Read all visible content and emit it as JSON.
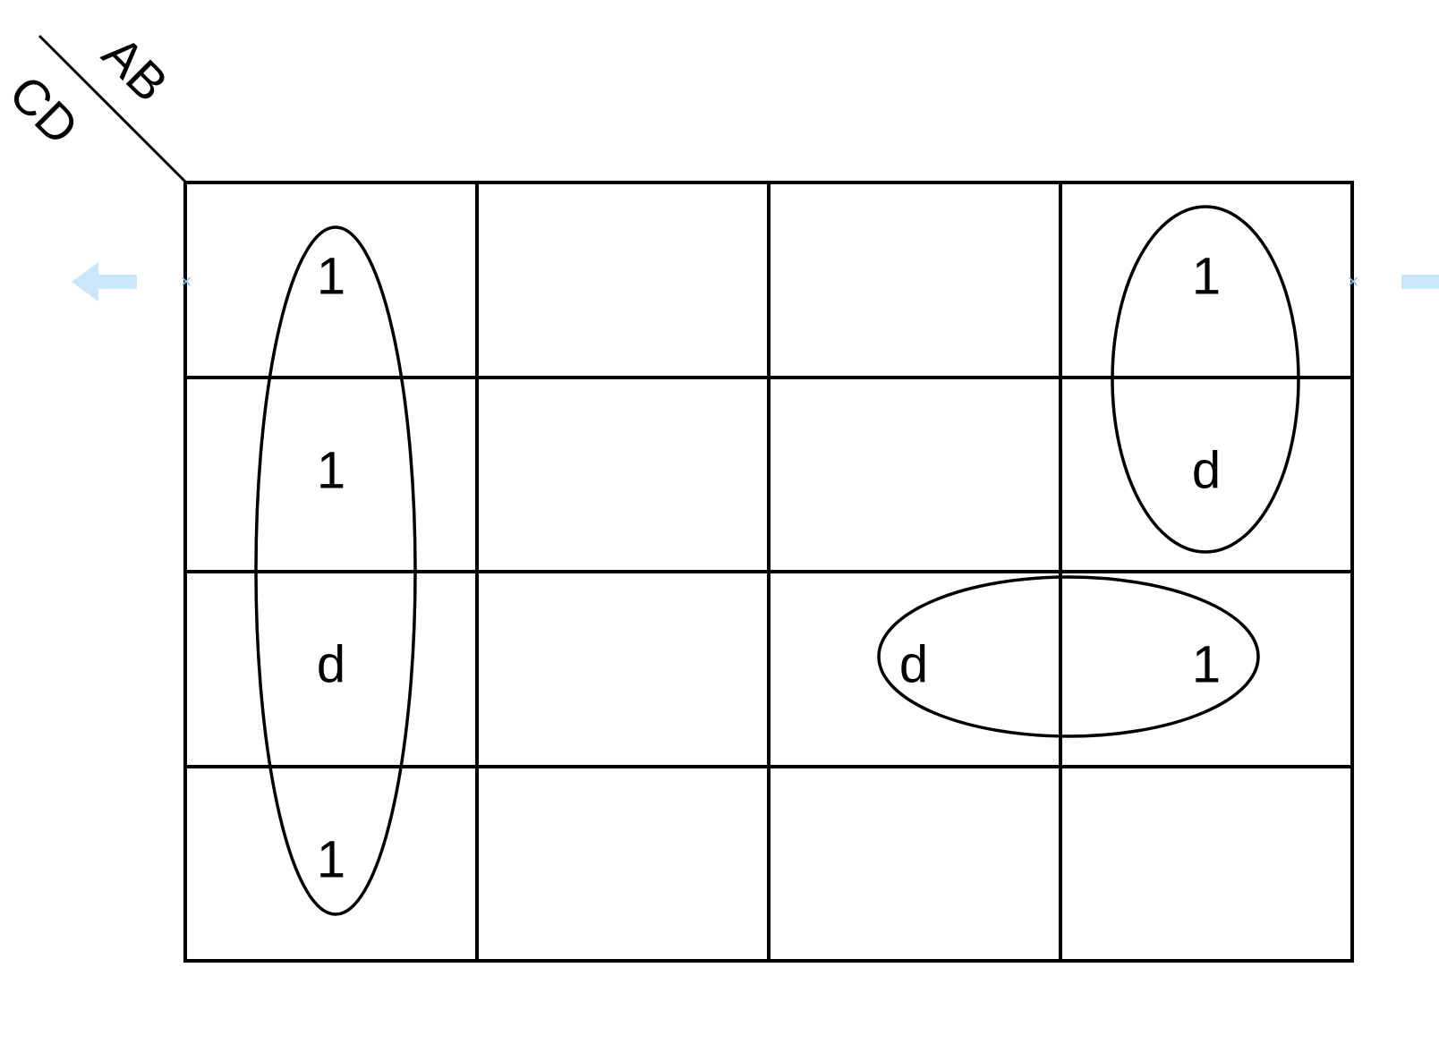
{
  "kmap": {
    "row_variables": "CD",
    "column_variables": "AB",
    "rows": [
      [
        "1",
        "",
        "",
        "1"
      ],
      [
        "1",
        "",
        "",
        "d"
      ],
      [
        "d",
        "",
        "d",
        "1"
      ],
      [
        "1",
        "",
        "",
        ""
      ]
    ],
    "groups": [
      {
        "cells": [
          [
            0,
            0
          ],
          [
            1,
            0
          ],
          [
            2,
            0
          ],
          [
            3,
            0
          ]
        ]
      },
      {
        "cells": [
          [
            0,
            3
          ],
          [
            1,
            3
          ]
        ]
      },
      {
        "cells": [
          [
            2,
            2
          ],
          [
            2,
            3
          ]
        ]
      }
    ]
  },
  "style": {
    "line_color": "#000000",
    "handle_color": "#bfe3f8",
    "background": "#ffffff"
  }
}
